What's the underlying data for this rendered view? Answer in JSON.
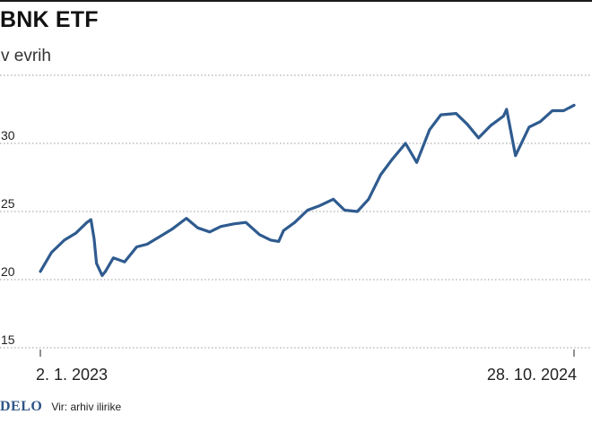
{
  "chart_data": {
    "type": "line",
    "title": "BNK ETF",
    "subtitle": "v evrih",
    "ylim": [
      15,
      35
    ],
    "yticks": [
      15,
      20,
      25,
      30
    ],
    "x_labels": [
      "2. 1. 2023",
      "28. 10. 2024"
    ],
    "grid": true,
    "line_color": "#2f5b8f",
    "series": [
      {
        "x": [
          "2023-01-02",
          "2023-01-16",
          "2023-02-01",
          "2023-02-15",
          "2023-03-01",
          "2023-03-06",
          "2023-03-10",
          "2023-03-13",
          "2023-03-20",
          "2023-03-24",
          "2023-04-03",
          "2023-04-17",
          "2023-05-02",
          "2023-05-15",
          "2023-06-01",
          "2023-06-15",
          "2023-07-03",
          "2023-07-17",
          "2023-08-01",
          "2023-08-15",
          "2023-09-01",
          "2023-09-15",
          "2023-10-02",
          "2023-10-16",
          "2023-10-26",
          "2023-11-01",
          "2023-11-15",
          "2023-12-01",
          "2023-12-15",
          "2024-01-02",
          "2024-01-16",
          "2024-02-01",
          "2024-02-15",
          "2024-03-01",
          "2024-03-15",
          "2024-04-01",
          "2024-04-15",
          "2024-05-01",
          "2024-05-15",
          "2024-06-03",
          "2024-06-17",
          "2024-07-01",
          "2024-07-16",
          "2024-08-01",
          "2024-08-05",
          "2024-08-16",
          "2024-09-02",
          "2024-09-16",
          "2024-10-01",
          "2024-10-15",
          "2024-10-28"
        ],
        "values": [
          20.6,
          22.0,
          22.9,
          23.4,
          24.2,
          24.4,
          23.0,
          21.2,
          20.3,
          20.6,
          21.6,
          21.3,
          22.4,
          22.6,
          23.2,
          23.7,
          24.5,
          23.8,
          23.5,
          23.9,
          24.1,
          24.2,
          23.3,
          22.9,
          22.8,
          23.6,
          24.2,
          25.1,
          25.4,
          25.9,
          25.1,
          25.0,
          25.9,
          27.7,
          28.8,
          30.0,
          28.6,
          31.0,
          32.1,
          32.2,
          31.4,
          30.4,
          31.3,
          32.0,
          32.5,
          29.1,
          31.2,
          31.6,
          32.4,
          32.4,
          32.8
        ]
      }
    ]
  },
  "footer": {
    "logo": "DELO",
    "source": "Vir: arhiv ilirike"
  }
}
